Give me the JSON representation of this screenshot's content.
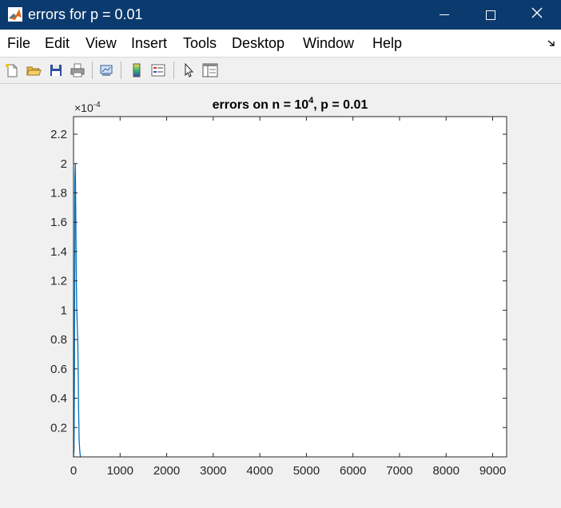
{
  "window": {
    "title": "errors for p = 0.01"
  },
  "menu": [
    "File",
    "Edit",
    "View",
    "Insert",
    "Tools",
    "Desktop",
    "Window",
    "Help"
  ],
  "toolbar_icons": [
    "new-figure-icon",
    "open-file-icon",
    "save-icon",
    "print-icon",
    "link-plot-icon",
    "insert-colorbar-icon",
    "insert-legend-icon",
    "edit-plot-arrow-icon",
    "property-inspector-icon"
  ],
  "chart_data": {
    "type": "line",
    "title_base": "errors on n = 10",
    "title_exp": "4",
    "title_tail": ", p = 0.01",
    "exponent_label": "×10",
    "exponent_power": "-4",
    "xlim": [
      0,
      9300
    ],
    "ylim": [
      0,
      2.32
    ],
    "xticks": [
      "0",
      "1000",
      "2000",
      "3000",
      "4000",
      "5000",
      "6000",
      "7000",
      "8000",
      "9000"
    ],
    "yticks": [
      "0.2",
      "0.4",
      "0.6",
      "0.8",
      "1",
      "1.2",
      "1.4",
      "1.6",
      "1.8",
      "2",
      "2.2"
    ],
    "line_color": "#0072bd",
    "series": [
      {
        "x": [
          0,
          10,
          20,
          30,
          40,
          50,
          60,
          70,
          80,
          90,
          100,
          110,
          120,
          130,
          140,
          150,
          160
        ],
        "y": [
          0.0,
          0.05,
          0.6,
          1.9,
          2.0,
          1.6,
          1.2,
          1.0,
          0.9,
          0.8,
          0.6,
          0.3,
          0.12,
          0.06,
          0.02,
          0.0,
          0.0
        ]
      }
    ]
  }
}
